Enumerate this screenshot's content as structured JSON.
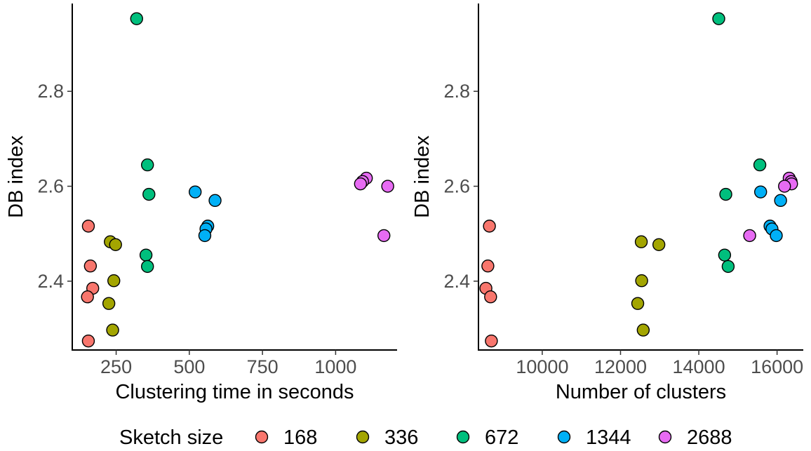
{
  "legend": {
    "title": "Sketch size",
    "entries": [
      {
        "label": "168",
        "color": "#F8766D"
      },
      {
        "label": "336",
        "color": "#A3A500"
      },
      {
        "label": "672",
        "color": "#00BF7D"
      },
      {
        "label": "1344",
        "color": "#00B0F6"
      },
      {
        "label": "2688",
        "color": "#E76BF3"
      }
    ]
  },
  "chart_data": [
    {
      "type": "scatter",
      "xlabel": "Clustering time in seconds",
      "ylabel": "DB index",
      "xlim": [
        100,
        1210
      ],
      "ylim": [
        2.255,
        2.985
      ],
      "xticks": [
        250,
        500,
        750,
        1000
      ],
      "xtick_labels": [
        "250",
        "500",
        "750",
        "1000"
      ],
      "yticks": [
        2.4,
        2.6,
        2.8
      ],
      "ytick_labels": [
        "2.4",
        "2.6",
        "2.8"
      ],
      "grid": false,
      "series": [
        {
          "name": "168",
          "color": "#F8766D",
          "points": [
            [
              155,
              2.516
            ],
            [
              162,
              2.432
            ],
            [
              170,
              2.385
            ],
            [
              152,
              2.367
            ],
            [
              155,
              2.274
            ]
          ]
        },
        {
          "name": "336",
          "color": "#A3A500",
          "points": [
            [
              230,
              2.483
            ],
            [
              248,
              2.477
            ],
            [
              242,
              2.401
            ],
            [
              225,
              2.353
            ],
            [
              238,
              2.297
            ]
          ]
        },
        {
          "name": "672",
          "color": "#00BF7D",
          "points": [
            [
              320,
              2.953
            ],
            [
              357,
              2.645
            ],
            [
              362,
              2.583
            ],
            [
              352,
              2.455
            ],
            [
              357,
              2.431
            ]
          ]
        },
        {
          "name": "1344",
          "color": "#00B0F6",
          "points": [
            [
              520,
              2.588
            ],
            [
              588,
              2.57
            ],
            [
              563,
              2.516
            ],
            [
              557,
              2.51
            ],
            [
              553,
              2.496
            ]
          ]
        },
        {
          "name": "2688",
          "color": "#E76BF3",
          "points": [
            [
              1105,
              2.617
            ],
            [
              1092,
              2.61
            ],
            [
              1085,
              2.605
            ],
            [
              1178,
              2.6
            ],
            [
              1165,
              2.496
            ]
          ]
        }
      ]
    },
    {
      "type": "scatter",
      "xlabel": "Number of clusters",
      "ylabel": "DB index",
      "xlim": [
        8370,
        16670
      ],
      "ylim": [
        2.255,
        2.985
      ],
      "xticks": [
        10000,
        12000,
        14000,
        16000
      ],
      "xtick_labels": [
        "10000",
        "12000",
        "14000",
        "16000"
      ],
      "yticks": [
        2.4,
        2.6,
        2.8
      ],
      "ytick_labels": [
        "2.4",
        "2.6",
        "2.8"
      ],
      "grid": false,
      "series": [
        {
          "name": "168",
          "color": "#F8766D",
          "points": [
            [
              8650,
              2.516
            ],
            [
              8610,
              2.432
            ],
            [
              8560,
              2.385
            ],
            [
              8680,
              2.367
            ],
            [
              8700,
              2.274
            ]
          ]
        },
        {
          "name": "336",
          "color": "#A3A500",
          "points": [
            [
              12530,
              2.483
            ],
            [
              12980,
              2.477
            ],
            [
              12540,
              2.401
            ],
            [
              12440,
              2.353
            ],
            [
              12580,
              2.297
            ]
          ]
        },
        {
          "name": "672",
          "color": "#00BF7D",
          "points": [
            [
              14510,
              2.953
            ],
            [
              15560,
              2.645
            ],
            [
              14690,
              2.583
            ],
            [
              14660,
              2.455
            ],
            [
              14750,
              2.431
            ]
          ]
        },
        {
          "name": "1344",
          "color": "#00B0F6",
          "points": [
            [
              15580,
              2.588
            ],
            [
              16090,
              2.57
            ],
            [
              15820,
              2.516
            ],
            [
              15870,
              2.51
            ],
            [
              15980,
              2.496
            ]
          ]
        },
        {
          "name": "2688",
          "color": "#E76BF3",
          "points": [
            [
              16310,
              2.617
            ],
            [
              16360,
              2.61
            ],
            [
              16370,
              2.605
            ],
            [
              16190,
              2.6
            ],
            [
              15300,
              2.496
            ]
          ]
        }
      ]
    }
  ]
}
